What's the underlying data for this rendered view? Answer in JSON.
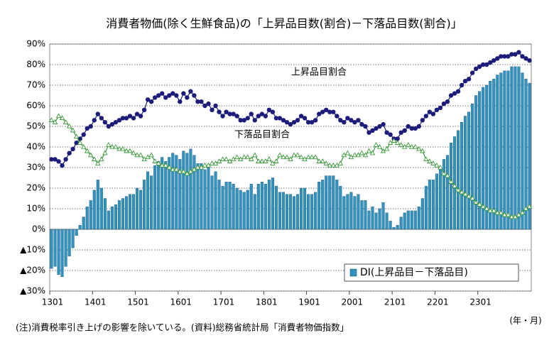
{
  "chart_data": {
    "type": "bar-line",
    "title": "消費者物価(除く生鮮食品)の「上昇品目数(割合)－下落品目数(割合)」",
    "x_unit": "(年・月)",
    "note": "(注)消費税率引き上げの影響を除いている。(資料)総務省統計局「消費者物価指数」",
    "categories": [
      "1301",
      null,
      null,
      null,
      null,
      null,
      null,
      null,
      null,
      null,
      null,
      null,
      "1401",
      null,
      null,
      null,
      null,
      null,
      null,
      null,
      null,
      null,
      null,
      null,
      "1501",
      null,
      null,
      null,
      null,
      null,
      null,
      null,
      null,
      null,
      null,
      null,
      "1601",
      null,
      null,
      null,
      null,
      null,
      null,
      null,
      null,
      null,
      null,
      null,
      "1701",
      null,
      null,
      null,
      null,
      null,
      null,
      null,
      null,
      null,
      null,
      null,
      "1801",
      null,
      null,
      null,
      null,
      null,
      null,
      null,
      null,
      null,
      null,
      null,
      "1901",
      null,
      null,
      null,
      null,
      null,
      null,
      null,
      null,
      null,
      null,
      null,
      "2001",
      null,
      null,
      null,
      null,
      null,
      null,
      null,
      null,
      null,
      null,
      null,
      "2101",
      null,
      null,
      null,
      null,
      null,
      null,
      null,
      null,
      null,
      null,
      null,
      "2201",
      null,
      null,
      null,
      null,
      null,
      null,
      null,
      null,
      null,
      null,
      null,
      "2301",
      null,
      null,
      null,
      null,
      null,
      null,
      null,
      null,
      null,
      null,
      null,
      null,
      null,
      null
    ],
    "series": [
      {
        "name": "DI(上昇品目－下落品目)",
        "type": "bar",
        "color": "#2f93c4",
        "legend": true,
        "values": [
          -19,
          -18,
          -22,
          -23,
          -18,
          -13,
          -9,
          -3,
          2,
          6,
          11,
          14,
          19,
          24,
          20,
          15,
          9,
          11,
          12,
          14,
          15,
          16,
          17,
          17,
          20,
          19,
          24,
          28,
          26,
          31,
          33,
          35,
          33,
          35,
          37,
          36,
          34,
          38,
          37,
          39,
          36,
          32,
          32,
          29,
          30,
          26,
          28,
          24,
          21,
          23,
          23,
          22,
          20,
          19,
          18,
          19,
          22,
          17,
          22,
          23,
          22,
          24,
          25,
          21,
          18,
          18,
          17,
          17,
          16,
          17,
          20,
          20,
          17,
          17,
          18,
          23,
          24,
          26,
          26,
          26,
          24,
          21,
          16,
          17,
          18,
          16,
          17,
          14,
          14,
          9,
          11,
          8,
          10,
          13,
          8,
          4,
          1,
          2,
          6,
          8,
          9,
          9,
          9,
          11,
          15,
          21,
          24,
          24,
          27,
          29,
          34,
          36,
          42,
          45,
          48,
          52,
          55,
          57,
          61,
          65,
          67,
          69,
          70,
          72,
          73,
          75,
          76,
          77,
          77,
          79,
          79,
          79,
          76,
          73,
          71
        ]
      },
      {
        "name": "上昇品目割合",
        "type": "line",
        "marker": "circle",
        "color": "#1c1c7a",
        "legend": false,
        "values": [
          34,
          34,
          33,
          31,
          34,
          37,
          39,
          42,
          44,
          46,
          49,
          50,
          53,
          56,
          54,
          52,
          50,
          51,
          52,
          53,
          54,
          54,
          55,
          54,
          56,
          55,
          58,
          63,
          62,
          64,
          65,
          66,
          64,
          65,
          66,
          65,
          62,
          66,
          64,
          67,
          65,
          62,
          62,
          60,
          61,
          58,
          60,
          57,
          55,
          57,
          56,
          56,
          55,
          53,
          53,
          54,
          56,
          53,
          55,
          56,
          55,
          58,
          57,
          54,
          54,
          53,
          52,
          51,
          52,
          53,
          55,
          54,
          52,
          52,
          53,
          56,
          57,
          58,
          57,
          57,
          55,
          53,
          52,
          54,
          53,
          52,
          53,
          51,
          50,
          47,
          48,
          49,
          50,
          51,
          47,
          46,
          44,
          44,
          47,
          48,
          50,
          49,
          49,
          50,
          53,
          55,
          57,
          56,
          58,
          59,
          61,
          62,
          65,
          66,
          67,
          70,
          72,
          73,
          76,
          78,
          79,
          80,
          80,
          81,
          82,
          83,
          84,
          84,
          84,
          85,
          85,
          86,
          84,
          83,
          82
        ]
      },
      {
        "name": "下落品目割合",
        "type": "line",
        "marker": "triangle",
        "color": "#3a9a3a",
        "legend": false,
        "values": [
          53,
          52,
          55,
          54,
          52,
          50,
          48,
          45,
          42,
          40,
          38,
          36,
          34,
          32,
          34,
          37,
          41,
          40,
          40,
          39,
          39,
          38,
          38,
          37,
          36,
          36,
          34,
          35,
          36,
          33,
          32,
          31,
          31,
          30,
          29,
          29,
          28,
          28,
          27,
          28,
          29,
          30,
          30,
          31,
          31,
          32,
          32,
          33,
          34,
          34,
          33,
          34,
          35,
          34,
          35,
          35,
          34,
          36,
          33,
          33,
          33,
          34,
          32,
          33,
          36,
          35,
          35,
          34,
          36,
          36,
          35,
          34,
          35,
          35,
          35,
          33,
          33,
          32,
          31,
          31,
          31,
          32,
          36,
          37,
          35,
          36,
          36,
          37,
          36,
          38,
          37,
          41,
          40,
          38,
          39,
          42,
          43,
          42,
          41,
          40,
          41,
          40,
          40,
          39,
          38,
          34,
          33,
          32,
          31,
          30,
          27,
          26,
          23,
          21,
          19,
          18,
          17,
          16,
          15,
          13,
          12,
          11,
          10,
          9,
          9,
          8,
          8,
          7,
          7,
          6,
          6,
          7,
          8,
          10,
          11
        ]
      }
    ],
    "ylim": [
      -30,
      90
    ],
    "yticks": [
      {
        "value": -30,
        "label": "▲30%"
      },
      {
        "value": -20,
        "label": "▲20%"
      },
      {
        "value": -10,
        "label": "▲10%"
      },
      {
        "value": 0,
        "label": "0%"
      },
      {
        "value": 10,
        "label": "10%"
      },
      {
        "value": 20,
        "label": "20%"
      },
      {
        "value": 30,
        "label": "30%"
      },
      {
        "value": 40,
        "label": "40%"
      },
      {
        "value": 50,
        "label": "50%"
      },
      {
        "value": 60,
        "label": "60%"
      },
      {
        "value": 70,
        "label": "70%"
      },
      {
        "value": 80,
        "label": "80%"
      },
      {
        "value": 90,
        "label": "90%"
      }
    ],
    "grid": true,
    "legend_position": "bottom-right"
  }
}
